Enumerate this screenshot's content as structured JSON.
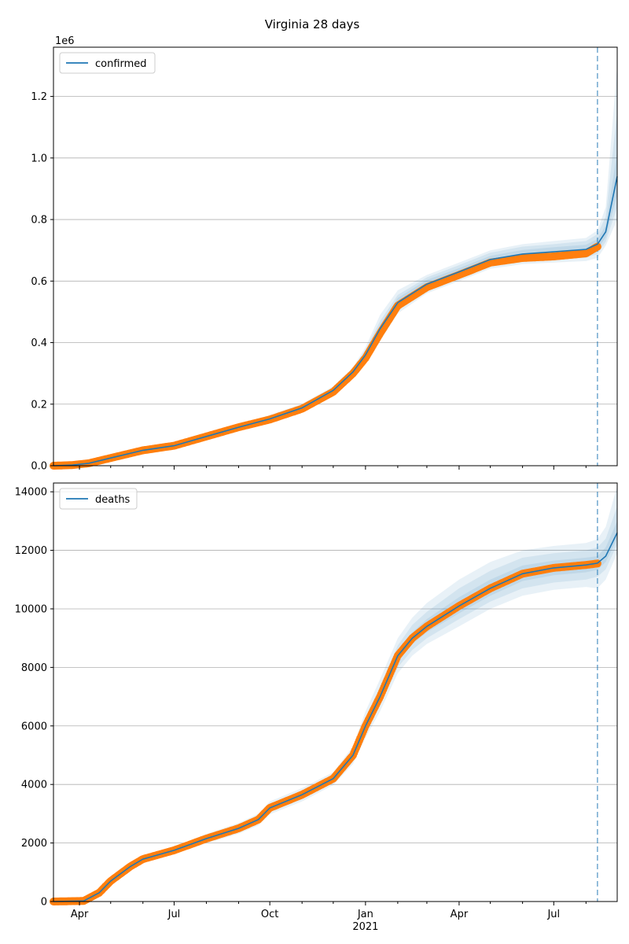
{
  "title": "Virginia 28 days",
  "colors": {
    "model": "#1f77b4",
    "observed": "#ff7f0e",
    "band": "#1f77b4",
    "grid": "#b0b0b0",
    "forecast_line": "#1f77b4"
  },
  "x_axis": {
    "range": [
      "2020-03-07",
      "2021-08-31"
    ],
    "major_ticks": [
      {
        "date": "2020-04-01",
        "label": "Apr"
      },
      {
        "date": "2020-07-01",
        "label": "Jul"
      },
      {
        "date": "2020-10-01",
        "label": "Oct"
      },
      {
        "date": "2021-01-01",
        "label": "Jan"
      },
      {
        "date": "2021-04-01",
        "label": "Apr"
      },
      {
        "date": "2021-07-01",
        "label": "Jul"
      }
    ],
    "minor_ticks": [
      "2020-05-01",
      "2020-06-01",
      "2020-08-01",
      "2020-09-01",
      "2020-11-01",
      "2020-12-01",
      "2021-02-01",
      "2021-03-01",
      "2021-05-01",
      "2021-06-01",
      "2021-08-01",
      "2021-09-01"
    ],
    "year_label": "2021",
    "forecast_start": "2021-08-12"
  },
  "chart_data": [
    {
      "type": "line",
      "legend": "confirmed",
      "legend_position": "upper-left",
      "grid": "horizontal",
      "ylim": [
        0,
        1360000
      ],
      "y_ticks": [
        0,
        200000,
        400000,
        600000,
        800000,
        1000000,
        1200000
      ],
      "y_tick_labels": [
        "0.0",
        "0.2",
        "0.4",
        "0.6",
        "0.8",
        "1.0",
        "1.2"
      ],
      "y_offset_label": "1e6",
      "observed": {
        "x": [
          "2020-03-07",
          "2020-03-25",
          "2020-04-10",
          "2020-05-01",
          "2020-06-01",
          "2020-07-01",
          "2020-08-01",
          "2020-09-01",
          "2020-10-01",
          "2020-11-01",
          "2020-12-01",
          "2020-12-20",
          "2021-01-01",
          "2021-01-15",
          "2021-02-01",
          "2021-03-01",
          "2021-04-01",
          "2021-05-01",
          "2021-06-01",
          "2021-07-01",
          "2021-08-01",
          "2021-08-12"
        ],
        "y": [
          0,
          2000,
          8000,
          25000,
          50000,
          65000,
          95000,
          125000,
          150000,
          185000,
          240000,
          300000,
          350000,
          430000,
          520000,
          580000,
          620000,
          660000,
          675000,
          680000,
          690000,
          712000
        ]
      },
      "model": {
        "x": [
          "2020-03-07",
          "2020-03-25",
          "2020-04-10",
          "2020-05-01",
          "2020-06-01",
          "2020-07-01",
          "2020-08-01",
          "2020-09-01",
          "2020-10-01",
          "2020-11-01",
          "2020-12-01",
          "2020-12-20",
          "2021-01-01",
          "2021-01-15",
          "2021-02-01",
          "2021-03-01",
          "2021-04-01",
          "2021-05-01",
          "2021-06-01",
          "2021-07-01",
          "2021-08-01",
          "2021-08-12",
          "2021-08-20",
          "2021-08-31"
        ],
        "y": [
          0,
          2000,
          8000,
          25000,
          50000,
          65000,
          95000,
          125000,
          152000,
          188000,
          245000,
          305000,
          360000,
          445000,
          530000,
          590000,
          630000,
          670000,
          688000,
          695000,
          703000,
          720000,
          760000,
          940000
        ]
      },
      "bands": [
        {
          "lower": [
            0,
            1500,
            6500,
            22000,
            46000,
            60000,
            89000,
            118000,
            140000,
            175000,
            232000,
            290000,
            335000,
            405000,
            495000,
            560000,
            600000,
            640000,
            655000,
            660000,
            665000,
            675000,
            715000,
            800000
          ],
          "upper": [
            0,
            2500,
            9500,
            28000,
            54000,
            70000,
            101000,
            132000,
            165000,
            201000,
            258000,
            320000,
            385000,
            490000,
            570000,
            620000,
            660000,
            700000,
            720000,
            730000,
            740000,
            765000,
            840000,
            1300000
          ]
        },
        {
          "lower": [
            0,
            1650,
            7000,
            23000,
            47500,
            61500,
            91000,
            121000,
            144000,
            179000,
            236000,
            295000,
            343000,
            420000,
            505000,
            568000,
            608000,
            648000,
            664000,
            670000,
            676000,
            688000,
            728000,
            840000
          ],
          "upper": [
            0,
            2350,
            9000,
            27000,
            52500,
            68500,
            99000,
            129000,
            160000,
            197000,
            254000,
            315000,
            377000,
            470000,
            555000,
            612000,
            652000,
            692000,
            712000,
            720000,
            730000,
            752000,
            810000,
            1150000
          ]
        },
        {
          "lower": [
            0,
            1800,
            7500,
            24000,
            48500,
            63000,
            93000,
            123000,
            148000,
            183000,
            240000,
            300000,
            350000,
            432000,
            515000,
            576000,
            618000,
            658000,
            675000,
            680000,
            688000,
            703000,
            742000,
            880000
          ],
          "upper": [
            0,
            2200,
            8500,
            26000,
            51500,
            67000,
            97000,
            127000,
            156000,
            193000,
            250000,
            310000,
            370000,
            458000,
            545000,
            604000,
            642000,
            682000,
            701000,
            710000,
            718000,
            737000,
            780000,
            1020000
          ]
        }
      ]
    },
    {
      "type": "line",
      "legend": "deaths",
      "legend_position": "upper-left",
      "grid": "horizontal",
      "ylim": [
        0,
        14300
      ],
      "y_ticks": [
        0,
        2000,
        4000,
        6000,
        8000,
        10000,
        12000,
        14000
      ],
      "y_tick_labels": [
        "0",
        "2000",
        "4000",
        "6000",
        "8000",
        "10000",
        "12000",
        "14000"
      ],
      "observed": {
        "x": [
          "2020-03-07",
          "2020-04-05",
          "2020-04-20",
          "2020-05-01",
          "2020-05-20",
          "2020-06-01",
          "2020-07-01",
          "2020-08-01",
          "2020-09-01",
          "2020-09-20",
          "2020-10-01",
          "2020-11-01",
          "2020-12-01",
          "2020-12-20",
          "2021-01-01",
          "2021-01-15",
          "2021-02-01",
          "2021-02-15",
          "2021-03-01",
          "2021-04-01",
          "2021-05-01",
          "2021-06-01",
          "2021-07-01",
          "2021-08-01",
          "2021-08-12"
        ],
        "y": [
          0,
          20,
          300,
          700,
          1200,
          1450,
          1750,
          2150,
          2500,
          2800,
          3200,
          3650,
          4200,
          5000,
          6000,
          7000,
          8400,
          9000,
          9400,
          10100,
          10700,
          11200,
          11400,
          11500,
          11550
        ]
      },
      "model": {
        "x": [
          "2020-03-07",
          "2020-04-05",
          "2020-04-20",
          "2020-05-01",
          "2020-05-20",
          "2020-06-01",
          "2020-07-01",
          "2020-08-01",
          "2020-09-01",
          "2020-09-20",
          "2020-10-01",
          "2020-11-01",
          "2020-12-01",
          "2020-12-20",
          "2021-01-01",
          "2021-01-15",
          "2021-02-01",
          "2021-02-15",
          "2021-03-01",
          "2021-04-01",
          "2021-05-01",
          "2021-06-01",
          "2021-07-01",
          "2021-08-01",
          "2021-08-12",
          "2021-08-20",
          "2021-08-31"
        ],
        "y": [
          0,
          20,
          300,
          700,
          1200,
          1450,
          1750,
          2150,
          2500,
          2800,
          3200,
          3650,
          4200,
          5000,
          6000,
          7000,
          8400,
          9000,
          9400,
          10100,
          10700,
          11200,
          11400,
          11500,
          11560,
          11800,
          12600
        ]
      },
      "bands": [
        {
          "lower": [
            0,
            15,
            250,
            620,
            1080,
            1320,
            1620,
            1990,
            2320,
            2600,
            2980,
            3420,
            3980,
            4700,
            5600,
            6500,
            7800,
            8400,
            8800,
            9400,
            10000,
            10450,
            10650,
            10750,
            10700,
            11000,
            11900
          ],
          "upper": [
            0,
            25,
            350,
            780,
            1320,
            1580,
            1880,
            2310,
            2680,
            3000,
            3420,
            3880,
            4420,
            5300,
            6500,
            7600,
            9000,
            9700,
            10200,
            11000,
            11600,
            12000,
            12150,
            12250,
            12380,
            12800,
            14200
          ]
        },
        {
          "lower": [
            0,
            17,
            270,
            650,
            1120,
            1370,
            1670,
            2050,
            2390,
            2670,
            3060,
            3500,
            4060,
            4800,
            5750,
            6700,
            8000,
            8600,
            9000,
            9650,
            10250,
            10700,
            10900,
            11000,
            11100,
            11350,
            12200
          ],
          "upper": [
            0,
            23,
            330,
            750,
            1280,
            1530,
            1830,
            2250,
            2610,
            2930,
            3340,
            3800,
            4340,
            5200,
            6300,
            7350,
            8750,
            9450,
            9900,
            10700,
            11300,
            11750,
            11900,
            12000,
            12100,
            12400,
            13500
          ]
        },
        {
          "lower": [
            0,
            18,
            285,
            675,
            1160,
            1410,
            1710,
            2100,
            2450,
            2740,
            3130,
            3580,
            4130,
            4900,
            5880,
            6850,
            8200,
            8800,
            9200,
            9850,
            10450,
            10950,
            11150,
            11250,
            11330,
            11600,
            12400
          ],
          "upper": [
            0,
            22,
            315,
            725,
            1240,
            1490,
            1790,
            2200,
            2550,
            2860,
            3270,
            3720,
            4270,
            5100,
            6150,
            7150,
            8600,
            9200,
            9650,
            10400,
            11000,
            11480,
            11650,
            11750,
            11800,
            12100,
            13000
          ]
        }
      ]
    }
  ]
}
